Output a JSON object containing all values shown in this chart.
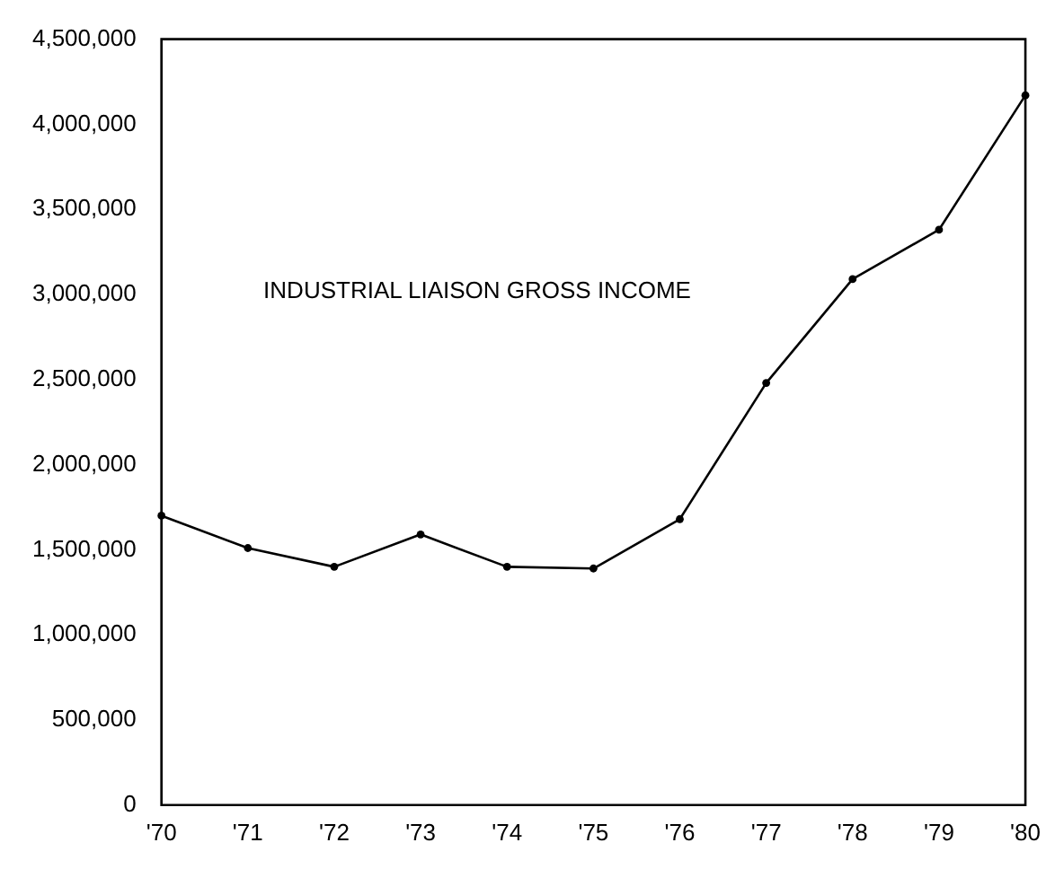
{
  "chart_data": {
    "type": "line",
    "title": "INDUSTRIAL LIAISON GROSS INCOME",
    "categories": [
      "'70",
      "'71",
      "'72",
      "'73",
      "'74",
      "'75",
      "'76",
      "'77",
      "'78",
      "'79",
      "'80"
    ],
    "series": [
      {
        "color": "#000000",
        "values": [
          1700000,
          1510000,
          1400000,
          1590000,
          1400000,
          1390000,
          1680000,
          2480000,
          3090000,
          3380000,
          4170000
        ]
      }
    ],
    "ylim": [
      0,
      4500000
    ],
    "yticks": [
      {
        "value": 0,
        "label": "0"
      },
      {
        "value": 500000,
        "label": "500,000"
      },
      {
        "value": 1000000,
        "label": "1,000,000"
      },
      {
        "value": 1500000,
        "label": "1,500,000"
      },
      {
        "value": 2000000,
        "label": "2,000,000"
      },
      {
        "value": 2500000,
        "label": "2,500,000"
      },
      {
        "value": 3000000,
        "label": "3,000,000"
      },
      {
        "value": 3500000,
        "label": "3,500,000"
      },
      {
        "value": 4000000,
        "label": "4,000,000"
      },
      {
        "value": 4500000,
        "label": "4,500,000"
      }
    ],
    "grid": false,
    "legend": false,
    "marker": "circle",
    "line_style": "solid"
  }
}
